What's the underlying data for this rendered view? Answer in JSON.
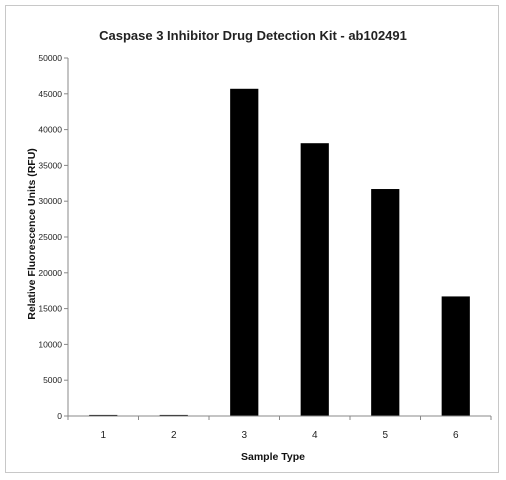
{
  "chart_data": {
    "type": "bar",
    "title": "Caspase 3 Inhibitor Drug Detection Kit - ab102491",
    "xlabel": "Sample Type",
    "ylabel": "Relative Fluorescence Units (RFU)",
    "categories": [
      "1",
      "2",
      "3",
      "4",
      "5",
      "6"
    ],
    "values": [
      150,
      150,
      45700,
      38100,
      31700,
      16700
    ],
    "ylim": [
      0,
      50000
    ],
    "yticks": [
      0,
      5000,
      10000,
      15000,
      20000,
      25000,
      30000,
      35000,
      40000,
      45000,
      50000
    ],
    "ytick_labels": [
      "0",
      "5000",
      "10000",
      "15000",
      "20000",
      "25000",
      "30000",
      "35000",
      "40000",
      "45000",
      "50000"
    ],
    "bar_color": "#000000",
    "grid": false,
    "legend": "none"
  }
}
